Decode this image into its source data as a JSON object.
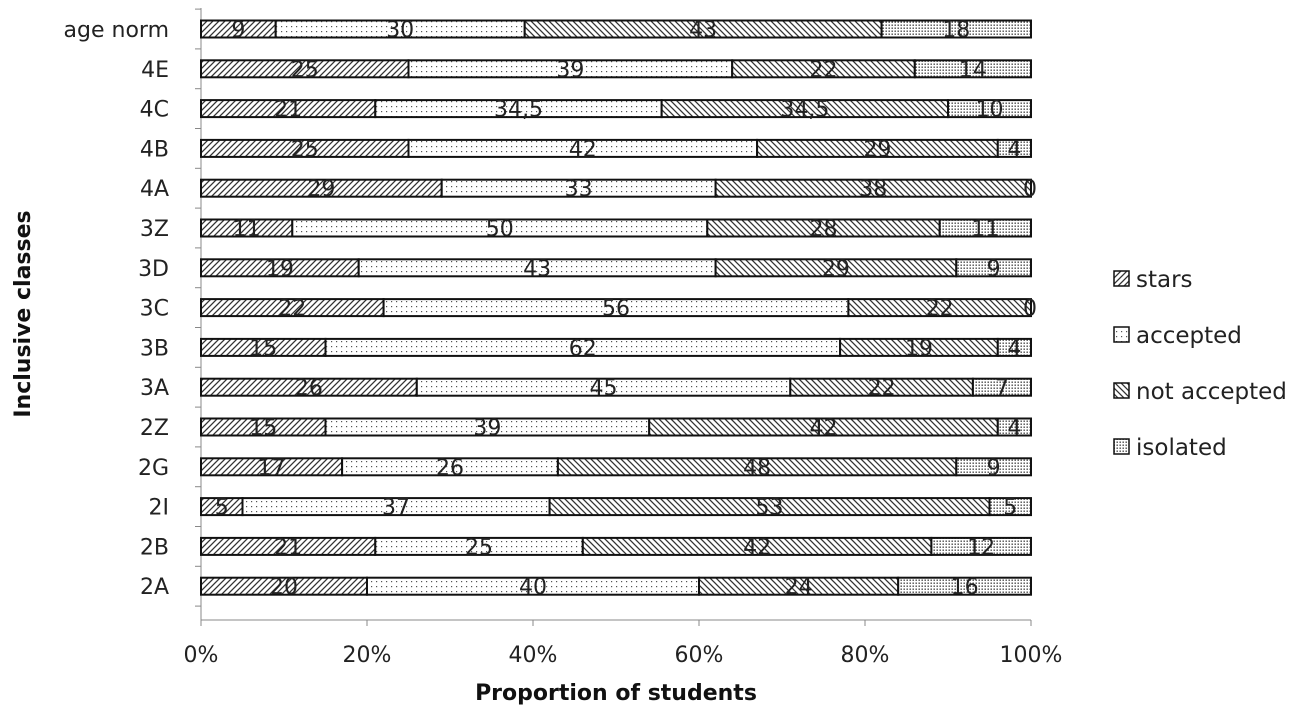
{
  "chart_data": {
    "type": "bar",
    "orientation": "horizontal",
    "stacked": "percent",
    "xlabel": "Proportion of students",
    "ylabel": "Inclusive classes",
    "xlim": [
      0,
      100
    ],
    "x_ticks": [
      "0%",
      "20%",
      "40%",
      "60%",
      "80%",
      "100%"
    ],
    "grid": false,
    "legend_position": "right",
    "categories": [
      "age norm",
      "4E",
      "4C",
      "4B",
      "4A",
      "3Z",
      "3D",
      "3C",
      "3B",
      "3A",
      "2Z",
      "2G",
      "2I",
      "2B",
      "2A"
    ],
    "series": [
      {
        "name": "stars",
        "pattern": "diagonal-right",
        "values": [
          9,
          25,
          21,
          25,
          29,
          11,
          19,
          22,
          15,
          26,
          15,
          17,
          5,
          21,
          20
        ],
        "labels": [
          "9",
          "25",
          "21",
          "25",
          "29",
          "11",
          "19",
          "22",
          "15",
          "26",
          "15",
          "17",
          "5",
          "21",
          "20"
        ]
      },
      {
        "name": "accepted",
        "pattern": "dots",
        "values": [
          30,
          39,
          34.5,
          42,
          33,
          50,
          43,
          56,
          62,
          45,
          39,
          26,
          37,
          25,
          40
        ],
        "labels": [
          "30",
          "39",
          "34,5",
          "42",
          "33",
          "50",
          "43",
          "56",
          "62",
          "45",
          "39",
          "26",
          "37",
          "25",
          "40"
        ]
      },
      {
        "name": "not accepted",
        "pattern": "diagonal-left",
        "values": [
          43,
          22,
          34.5,
          29,
          38,
          28,
          29,
          22,
          19,
          22,
          42,
          48,
          53,
          42,
          24
        ],
        "labels": [
          "43",
          "22",
          "34,5",
          "29",
          "38",
          "28",
          "29",
          "22",
          "19",
          "22",
          "42",
          "48",
          "53",
          "42",
          "24"
        ]
      },
      {
        "name": "isolated",
        "pattern": "dense-dots",
        "values": [
          18,
          14,
          10,
          4,
          0,
          11,
          9,
          0,
          4,
          7,
          4,
          9,
          5,
          12,
          16
        ],
        "labels": [
          "18",
          "14",
          "10",
          "4",
          "0",
          "11",
          "9",
          "0",
          "4",
          "7",
          "4",
          "9",
          "5",
          "12",
          "16"
        ]
      }
    ]
  }
}
